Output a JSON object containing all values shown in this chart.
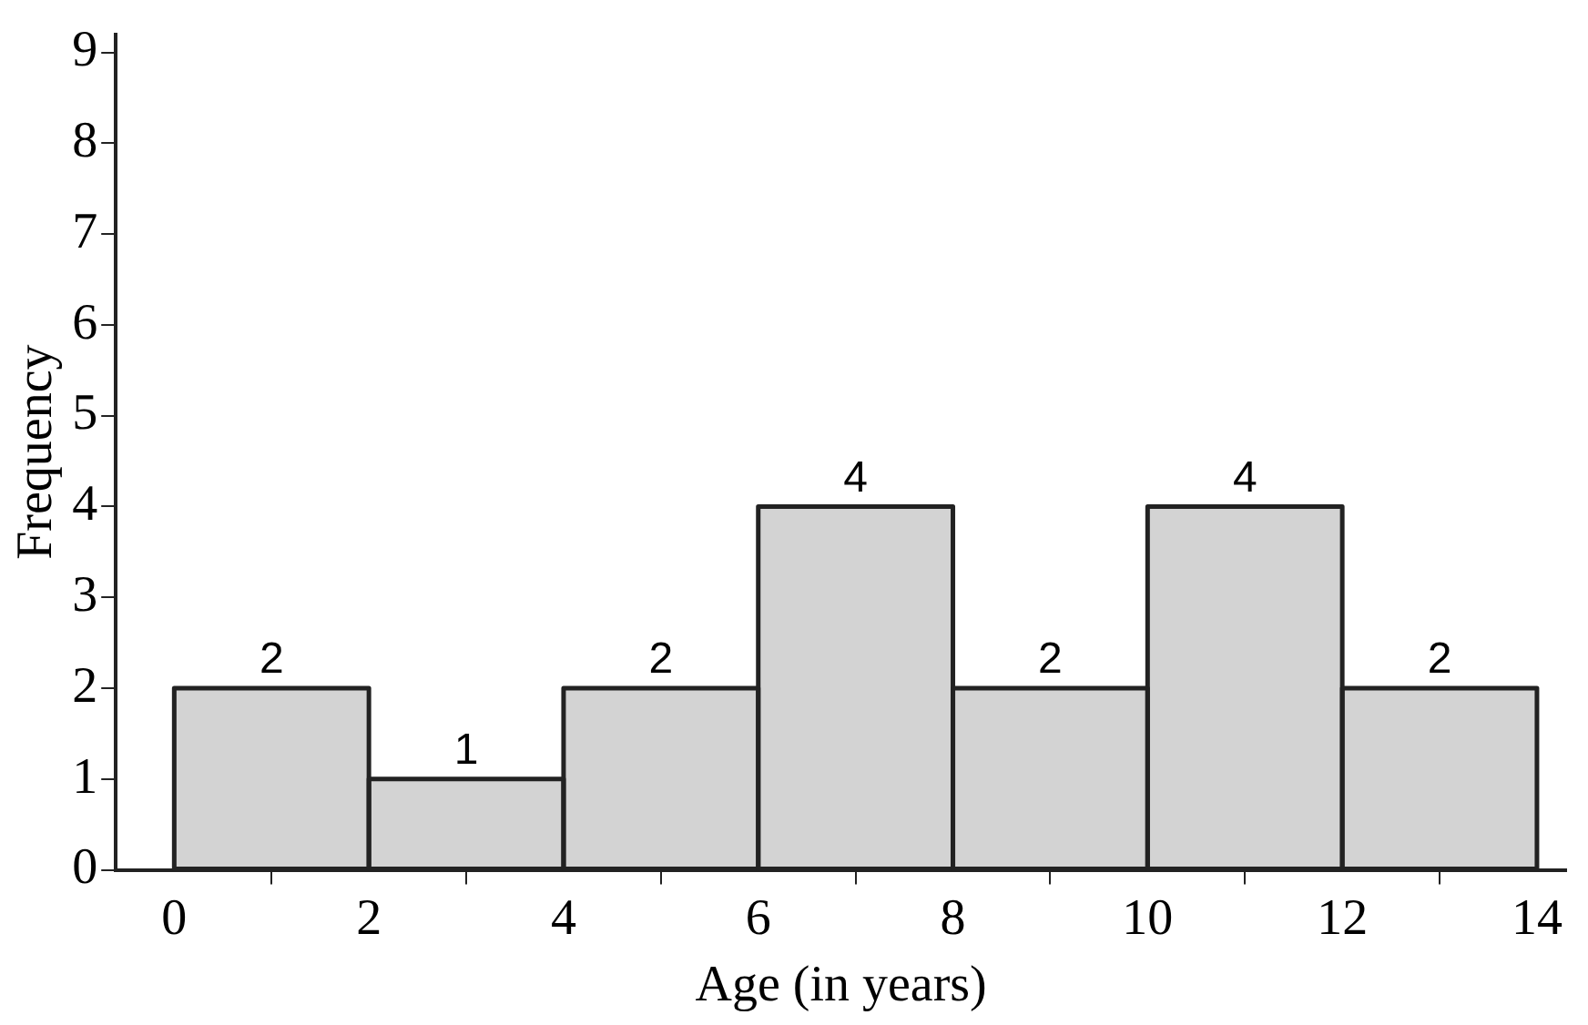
{
  "chart_data": {
    "type": "histogram",
    "xlabel": "Age (in years)",
    "ylabel": "Frequency",
    "bins": [
      0,
      2,
      4,
      6,
      8,
      10,
      12,
      14
    ],
    "values": [
      2,
      1,
      2,
      4,
      2,
      4,
      2
    ],
    "color": "#d3d3d3",
    "xlim": [
      -0.6,
      14.3
    ],
    "xticks": [
      0,
      2,
      4,
      6,
      8,
      10,
      12,
      14
    ],
    "ylim": [
      0,
      9.2
    ],
    "yticks": [
      0,
      1,
      2,
      3,
      4,
      5,
      6,
      7,
      8,
      9
    ],
    "grid": false,
    "legend": false,
    "data_labels": true
  }
}
